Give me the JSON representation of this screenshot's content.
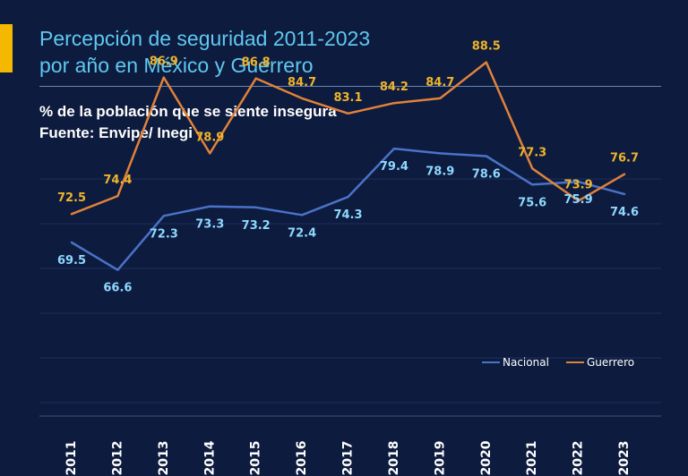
{
  "header": {
    "title_line1": "Percepción de seguridad 2011-2023",
    "title_line2": "por año en México y Guerrero",
    "subtitle_line1": "% de la población que se siente insegura",
    "subtitle_line2": "Fuente: Envipe/ Inegi"
  },
  "colors": {
    "background": "#0d1b3e",
    "accent": "#f5b800",
    "title": "#5fc8f0",
    "nacional": "#4a72c8",
    "guerrero": "#e0823a",
    "nacional_label": "#8fd8ff",
    "guerrero_label": "#f0b429"
  },
  "chart_data": {
    "type": "line",
    "title": "Percepción de seguridad 2011-2023 por año en México y Guerrero",
    "subtitle": "% de la población que se siente insegura",
    "source": "Fuente: Envipe/ Inegi",
    "xlabel": "",
    "ylabel": "",
    "x": [
      "2011",
      "2012",
      "2013",
      "2014",
      "2015",
      "2016",
      "2017",
      "2018",
      "2019",
      "2020",
      "2021",
      "2022",
      "2023"
    ],
    "series": [
      {
        "name": "Nacional",
        "values": [
          69.5,
          66.6,
          72.3,
          73.3,
          73.2,
          72.4,
          74.3,
          79.4,
          78.9,
          78.6,
          75.6,
          75.9,
          74.6
        ]
      },
      {
        "name": "Guerrero",
        "values": [
          72.5,
          74.4,
          86.9,
          78.9,
          86.8,
          84.7,
          83.1,
          84.2,
          84.7,
          88.5,
          77.3,
          73.9,
          76.7
        ]
      }
    ],
    "ylim": [
      0,
      100
    ],
    "grid": true,
    "legend": "right"
  }
}
